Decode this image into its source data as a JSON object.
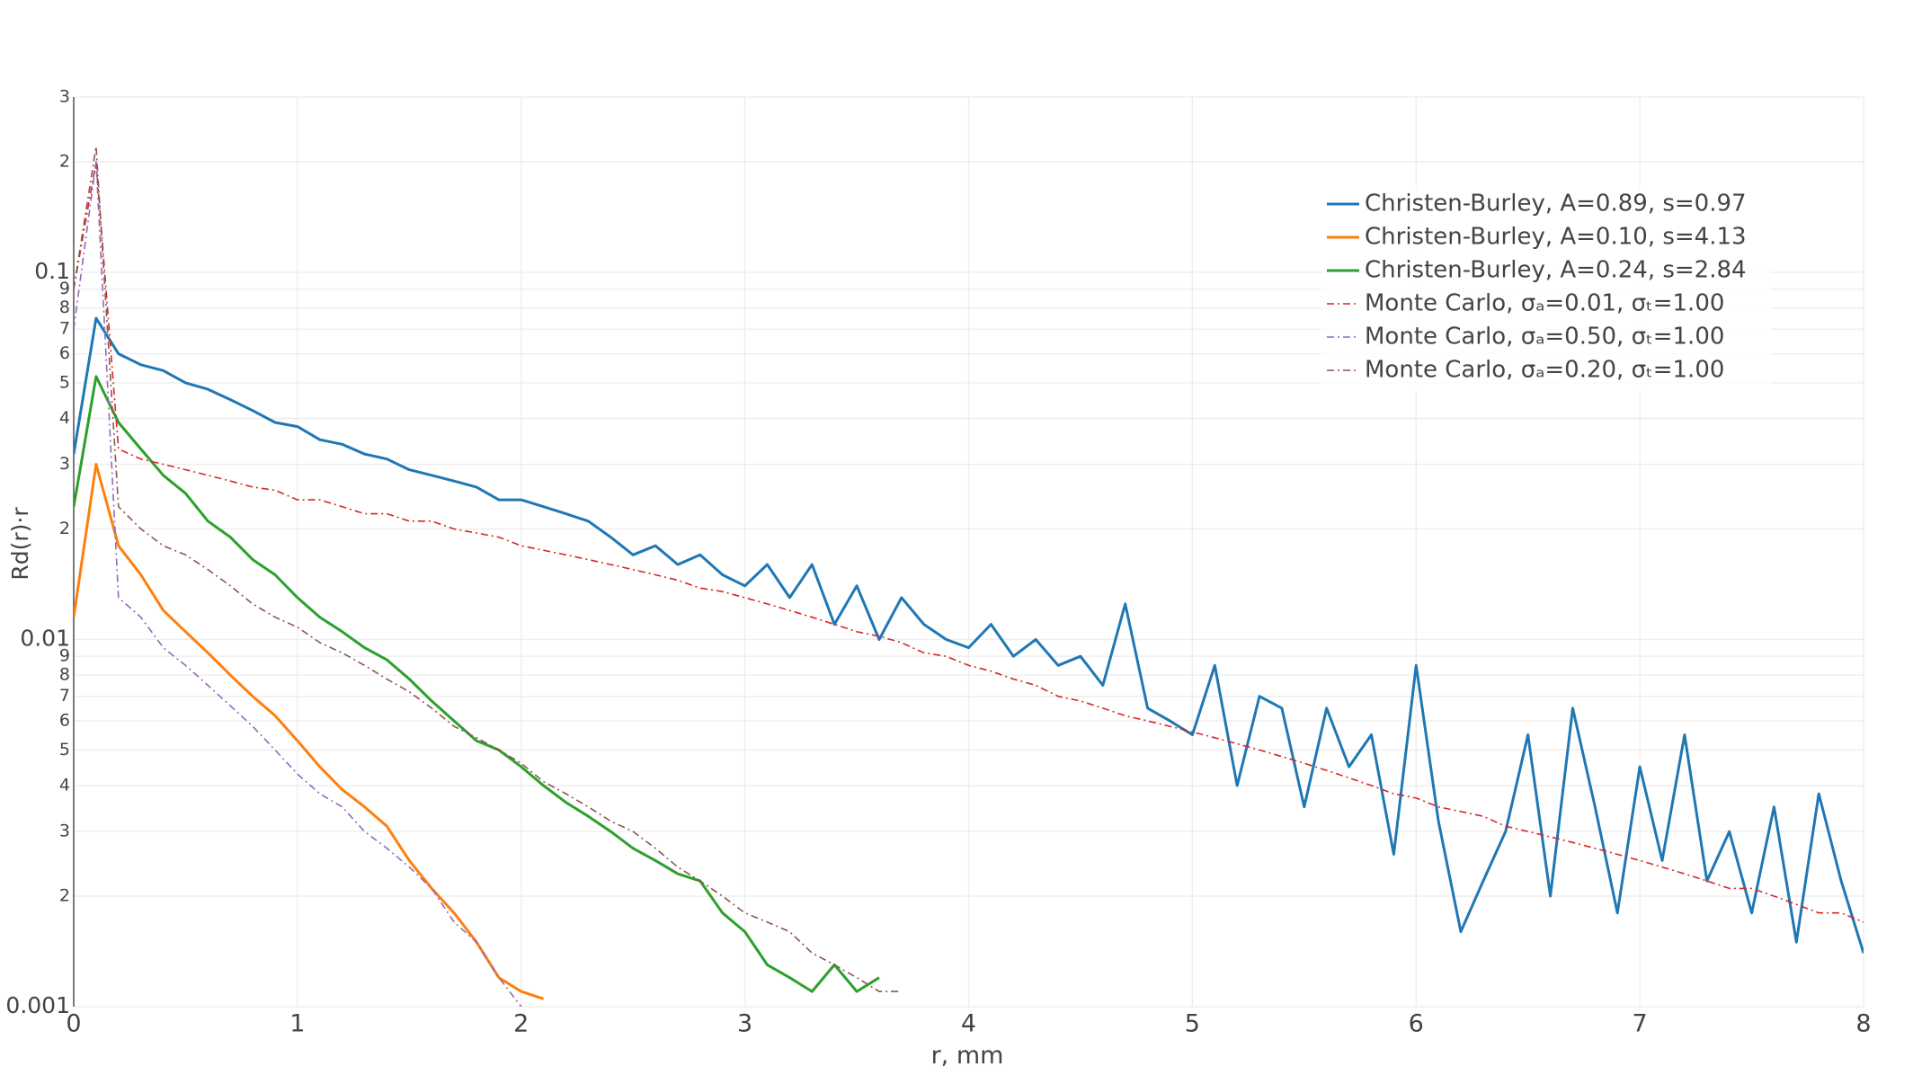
{
  "chart_data": {
    "type": "line",
    "log_y": true,
    "grid": true,
    "legend": "top-right",
    "x_label": "r, mm",
    "y_label": "Rd(r)·r",
    "xlim": [
      0,
      8
    ],
    "xticks": [
      0,
      1,
      2,
      3,
      4,
      5,
      6,
      7,
      8
    ],
    "ylim": [
      0.001,
      0.3
    ],
    "yticks": [
      0.001,
      {
        "value": 0.002,
        "label": "2"
      },
      {
        "value": 0.003,
        "label": "3"
      },
      {
        "value": 0.004,
        "label": "4"
      },
      {
        "value": 0.005,
        "label": "5"
      },
      {
        "value": 0.006,
        "label": "6"
      },
      {
        "value": 0.007,
        "label": "7"
      },
      {
        "value": 0.008,
        "label": "8"
      },
      {
        "value": 0.009,
        "label": "9"
      },
      0.01,
      {
        "value": 0.02,
        "label": "2"
      },
      {
        "value": 0.03,
        "label": "3"
      },
      {
        "value": 0.04,
        "label": "4"
      },
      {
        "value": 0.05,
        "label": "5"
      },
      {
        "value": 0.06,
        "label": "6"
      },
      {
        "value": 0.07,
        "label": "7"
      },
      {
        "value": 0.08,
        "label": "8"
      },
      {
        "value": 0.09,
        "label": "9"
      },
      0.1,
      {
        "value": 0.2,
        "label": "2"
      },
      {
        "value": 0.3,
        "label": "3"
      }
    ],
    "series": [
      {
        "name": "Christen-Burley, A=0.89, s=0.97",
        "color": "#1f77b4",
        "dash": "solid",
        "x": [
          0,
          0.1,
          0.2,
          0.3,
          0.4,
          0.5,
          0.6,
          0.7,
          0.8,
          0.9,
          1,
          1.1,
          1.2,
          1.3,
          1.4,
          1.5,
          1.6,
          1.7,
          1.8,
          1.9,
          2,
          2.1,
          2.2,
          2.3,
          2.4,
          2.5,
          2.6,
          2.7,
          2.8,
          2.9,
          3,
          3.1,
          3.2,
          3.3,
          3.4,
          3.5,
          3.6,
          3.7,
          3.8,
          3.9,
          4,
          4.1,
          4.2,
          4.3,
          4.4,
          4.5,
          4.6,
          4.7,
          4.8,
          4.9,
          5,
          5.1,
          5.2,
          5.3,
          5.4,
          5.5,
          5.6,
          5.7,
          5.8,
          5.9,
          6,
          6.1,
          6.2,
          6.3,
          6.4,
          6.5,
          6.6,
          6.7,
          6.8,
          6.9,
          7,
          7.1,
          7.2,
          7.3,
          7.4,
          7.5,
          7.6,
          7.7,
          7.8,
          7.9,
          8
        ],
        "values": [
          0.032,
          0.075,
          0.06,
          0.056,
          0.054,
          0.05,
          0.048,
          0.045,
          0.042,
          0.039,
          0.038,
          0.035,
          0.034,
          0.032,
          0.031,
          0.029,
          0.028,
          0.027,
          0.026,
          0.024,
          0.024,
          0.023,
          0.022,
          0.021,
          0.019,
          0.017,
          0.018,
          0.016,
          0.017,
          0.015,
          0.014,
          0.016,
          0.013,
          0.016,
          0.011,
          0.014,
          0.01,
          0.013,
          0.011,
          0.01,
          0.0095,
          0.011,
          0.009,
          0.01,
          0.0085,
          0.009,
          0.0075,
          0.0125,
          0.0065,
          0.006,
          0.0055,
          0.0085,
          0.004,
          0.007,
          0.0065,
          0.0035,
          0.0065,
          0.0045,
          0.0055,
          0.0026,
          0.0085,
          0.0032,
          0.0016,
          0.0022,
          0.003,
          0.0055,
          0.002,
          0.0065,
          0.0035,
          0.0018,
          0.0045,
          0.0025,
          0.0055,
          0.0022,
          0.003,
          0.0018,
          0.0035,
          0.0015,
          0.0038,
          0.0022,
          0.0014
        ]
      },
      {
        "name": "Christen-Burley, A=0.10, s=4.13",
        "color": "#ff7f0e",
        "dash": "solid",
        "x": [
          0,
          0.1,
          0.2,
          0.3,
          0.4,
          0.5,
          0.6,
          0.7,
          0.8,
          0.9,
          1,
          1.1,
          1.2,
          1.3,
          1.4,
          1.5,
          1.6,
          1.7,
          1.8,
          1.9,
          2,
          2.1
        ],
        "values": [
          0.0115,
          0.03,
          0.018,
          0.015,
          0.012,
          0.0105,
          0.0092,
          0.008,
          0.007,
          0.0062,
          0.0053,
          0.0045,
          0.0039,
          0.0035,
          0.0031,
          0.0025,
          0.0021,
          0.0018,
          0.0015,
          0.0012,
          0.0011,
          0.00105
        ]
      },
      {
        "name": "Christen-Burley, A=0.24, s=2.84",
        "color": "#2ca02c",
        "dash": "solid",
        "x": [
          0,
          0.1,
          0.2,
          0.3,
          0.4,
          0.5,
          0.6,
          0.7,
          0.8,
          0.9,
          1,
          1.1,
          1.2,
          1.3,
          1.4,
          1.5,
          1.6,
          1.7,
          1.8,
          1.9,
          2,
          2.1,
          2.2,
          2.3,
          2.4,
          2.5,
          2.6,
          2.7,
          2.8,
          2.9,
          3,
          3.1,
          3.2,
          3.3,
          3.4,
          3.5,
          3.6
        ],
        "values": [
          0.023,
          0.052,
          0.039,
          0.033,
          0.028,
          0.025,
          0.021,
          0.019,
          0.0165,
          0.015,
          0.013,
          0.0115,
          0.0105,
          0.0095,
          0.0088,
          0.0078,
          0.0068,
          0.006,
          0.0053,
          0.005,
          0.0045,
          0.004,
          0.0036,
          0.0033,
          0.003,
          0.0027,
          0.0025,
          0.0023,
          0.0022,
          0.0018,
          0.0016,
          0.0013,
          0.0012,
          0.0011,
          0.0013,
          0.0011,
          0.0012
        ]
      },
      {
        "name": "Monte Carlo, σₐ=0.01, σₜ=1.00",
        "color": "#d62728",
        "dash": "dashdot",
        "x": [
          0,
          0.1,
          0.2,
          0.3,
          0.4,
          0.5,
          0.6,
          0.7,
          0.8,
          0.9,
          1,
          1.1,
          1.2,
          1.3,
          1.4,
          1.5,
          1.6,
          1.7,
          1.8,
          1.9,
          2,
          2.1,
          2.2,
          2.3,
          2.4,
          2.5,
          2.6,
          2.7,
          2.8,
          2.9,
          3,
          3.1,
          3.2,
          3.3,
          3.4,
          3.5,
          3.6,
          3.7,
          3.8,
          3.9,
          4,
          4.1,
          4.2,
          4.3,
          4.4,
          4.5,
          4.6,
          4.7,
          4.8,
          4.9,
          5,
          5.1,
          5.2,
          5.3,
          5.4,
          5.5,
          5.6,
          5.7,
          5.8,
          5.9,
          6,
          6.1,
          6.2,
          6.3,
          6.4,
          6.5,
          6.6,
          6.7,
          6.8,
          6.9,
          7,
          7.1,
          7.2,
          7.3,
          7.4,
          7.5,
          7.6,
          7.7,
          7.8,
          7.9,
          8
        ],
        "values": [
          0.09,
          0.2,
          0.033,
          0.031,
          0.03,
          0.029,
          0.028,
          0.027,
          0.026,
          0.0255,
          0.024,
          0.024,
          0.023,
          0.022,
          0.022,
          0.021,
          0.021,
          0.02,
          0.0195,
          0.019,
          0.018,
          0.0175,
          0.017,
          0.0165,
          0.016,
          0.0155,
          0.015,
          0.0145,
          0.0138,
          0.0135,
          0.013,
          0.0125,
          0.012,
          0.0115,
          0.011,
          0.0105,
          0.0102,
          0.0098,
          0.0092,
          0.009,
          0.0085,
          0.0082,
          0.0078,
          0.0075,
          0.007,
          0.0068,
          0.0065,
          0.0062,
          0.006,
          0.0058,
          0.0056,
          0.0054,
          0.0052,
          0.005,
          0.0048,
          0.0046,
          0.0044,
          0.0042,
          0.004,
          0.0038,
          0.0037,
          0.0035,
          0.0034,
          0.0033,
          0.0031,
          0.003,
          0.0029,
          0.0028,
          0.0027,
          0.0026,
          0.0025,
          0.0024,
          0.0023,
          0.0022,
          0.0021,
          0.0021,
          0.002,
          0.0019,
          0.0018,
          0.0018,
          0.0017
        ]
      },
      {
        "name": "Monte Carlo, σₐ=0.50, σₜ=1.00",
        "color": "#9467bd",
        "dash": "dashdot",
        "x": [
          0,
          0.1,
          0.2,
          0.3,
          0.4,
          0.5,
          0.6,
          0.7,
          0.8,
          0.9,
          1,
          1.1,
          1.2,
          1.3,
          1.4,
          1.5,
          1.6,
          1.7,
          1.8,
          1.9,
          2
        ],
        "values": [
          0.07,
          0.2,
          0.013,
          0.0115,
          0.0095,
          0.0085,
          0.0075,
          0.0066,
          0.0058,
          0.005,
          0.0043,
          0.0038,
          0.0035,
          0.003,
          0.0027,
          0.0024,
          0.0021,
          0.0017,
          0.0015,
          0.0012,
          0.001
        ]
      },
      {
        "name": "Monte Carlo, σₐ=0.20, σₜ=1.00",
        "color": "#8c564b",
        "dash": "dashdot",
        "x": [
          0,
          0.1,
          0.2,
          0.3,
          0.4,
          0.5,
          0.6,
          0.7,
          0.8,
          0.9,
          1,
          1.1,
          1.2,
          1.3,
          1.4,
          1.5,
          1.6,
          1.7,
          1.8,
          1.9,
          2,
          2.1,
          2.2,
          2.3,
          2.4,
          2.5,
          2.6,
          2.7,
          2.8,
          2.9,
          3,
          3.1,
          3.2,
          3.3,
          3.4,
          3.5,
          3.6,
          3.7
        ],
        "values": [
          0.09,
          0.22,
          0.023,
          0.02,
          0.018,
          0.017,
          0.0155,
          0.014,
          0.0125,
          0.0115,
          0.0108,
          0.0098,
          0.0092,
          0.0085,
          0.0078,
          0.0072,
          0.0065,
          0.0058,
          0.0054,
          0.005,
          0.0046,
          0.0041,
          0.0038,
          0.0035,
          0.0032,
          0.003,
          0.0027,
          0.0024,
          0.0022,
          0.002,
          0.0018,
          0.0017,
          0.0016,
          0.0014,
          0.0013,
          0.0012,
          0.0011,
          0.0011
        ]
      }
    ]
  }
}
